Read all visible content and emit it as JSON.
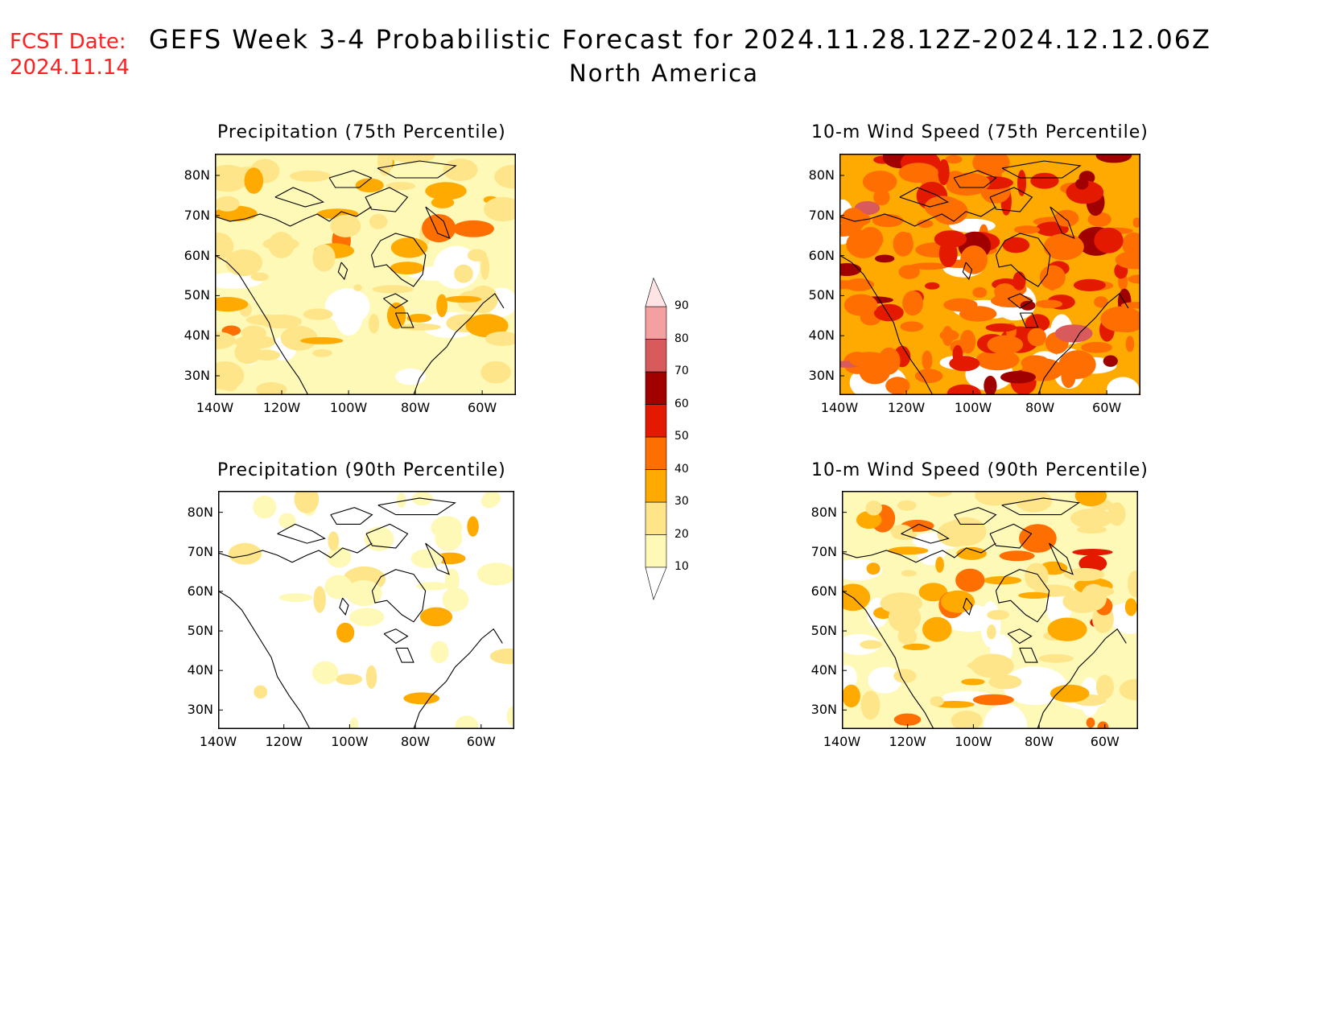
{
  "header": {
    "fcst_label": "FCST Date:",
    "fcst_date": "2024.11.14",
    "title": "GEFS Week 3-4 Probabilistic Forecast for 2024.11.28.12Z-2024.12.12.06Z",
    "subtitle": "North America"
  },
  "panels": [
    {
      "id": "p75",
      "title": "Precipitation (75th Percentile)"
    },
    {
      "id": "w75",
      "title": "10-m Wind Speed (75th Percentile)"
    },
    {
      "id": "p90",
      "title": "Precipitation (90th Percentile)"
    },
    {
      "id": "w90",
      "title": "10-m Wind Speed (90th Percentile)"
    }
  ],
  "axes": {
    "lat_labels": [
      "80N",
      "70N",
      "60N",
      "50N",
      "40N",
      "30N"
    ],
    "lon_labels": [
      "140W",
      "120W",
      "100W",
      "80W",
      "60W"
    ]
  },
  "colorbar": {
    "levels": [
      "10",
      "20",
      "30",
      "40",
      "50",
      "60",
      "70",
      "80",
      "90"
    ],
    "colors": [
      "#fff9b8",
      "#ffe58a",
      "#ffaa00",
      "#ff6e00",
      "#e41a00",
      "#a00000",
      "#d85a5a",
      "#f4a0a0",
      "#ffe4e6"
    ]
  }
}
